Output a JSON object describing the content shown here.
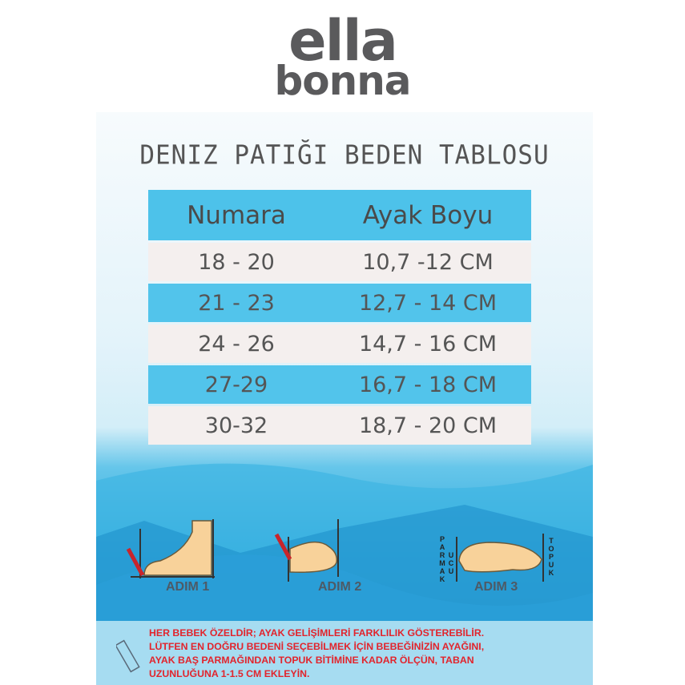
{
  "logo": {
    "line1": "ella",
    "line2": "bonna"
  },
  "title": "DENIZ PATIĞI BEDEN TABLOSU",
  "table": {
    "headers": [
      "Numara",
      "Ayak Boyu"
    ],
    "rows": [
      [
        "18 - 20",
        "10,7 -12  CM"
      ],
      [
        "21 - 23",
        "12,7 - 14 CM"
      ],
      [
        "24 - 26",
        "14,7 - 16 CM"
      ],
      [
        "27-29",
        "16,7 - 18 CM"
      ],
      [
        "30-32",
        "18,7 - 20 CM"
      ]
    ]
  },
  "steps": [
    "ADIM 1",
    "ADIM 2",
    "ADIM 3"
  ],
  "labels": {
    "toe": "PARMAK",
    "tip": "UCU",
    "heel": "TOPUK"
  },
  "note": [
    "HER BEBEK ÖZELDİR; AYAK GELİŞİMLERİ FARKLILIK GÖSTEREBİLİR.",
    "LÜTFEN EN DOĞRU BEDENİ SEÇEBİLMEK İÇİN BEBEĞİNİZİN AYAĞINI,",
    "AYAK BAŞ PARMAĞINDAN TOPUK BİTİMİNE KADAR ÖLÇÜN, TABAN",
    "UZUNLUĞUNA 1-1.5 CM EKLEYİN."
  ],
  "colors": {
    "header": "#4dc2ea",
    "rowLight": "#f4efee",
    "rowBlue": "#52c4eb",
    "noteText": "#e2242c",
    "logo": "#5a5a5c"
  }
}
